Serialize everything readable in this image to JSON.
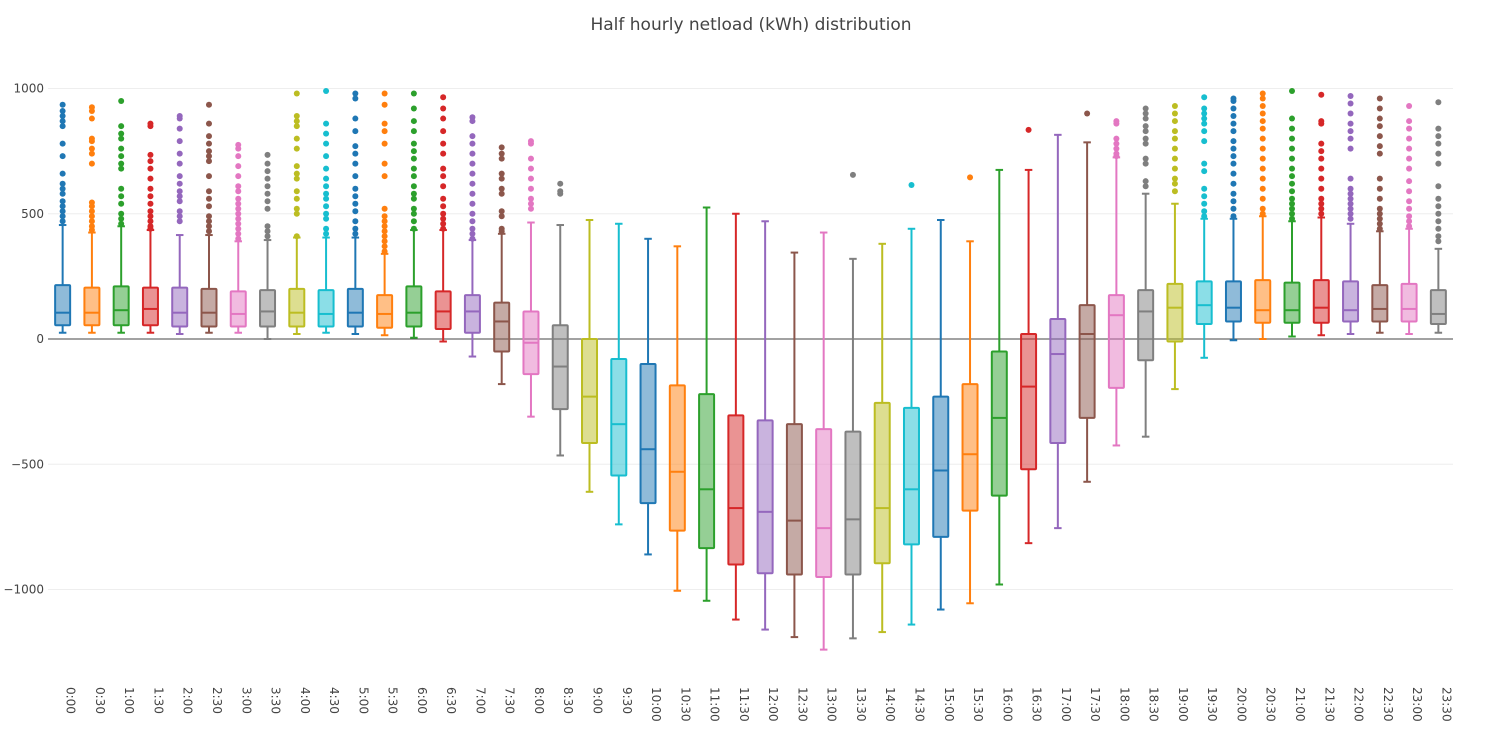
{
  "chart_data": {
    "type": "box",
    "title": "Half hourly netload (kWh) distribution",
    "xlabel": "",
    "ylabel": "",
    "ylim": [
      -1380,
      1130
    ],
    "yticks": [
      1000,
      500,
      0,
      -500,
      -1000
    ],
    "ytick_labels": [
      "1000",
      "500",
      "0",
      "−500",
      "−1000"
    ],
    "categories": [
      "0:00",
      "0:30",
      "1:00",
      "1:30",
      "2:00",
      "2:30",
      "3:00",
      "3:30",
      "4:00",
      "4:30",
      "5:00",
      "5:30",
      "6:00",
      "6:30",
      "7:00",
      "7:30",
      "8:00",
      "8:30",
      "9:00",
      "9:30",
      "10:00",
      "10:30",
      "11:00",
      "11:30",
      "12:00",
      "12:30",
      "13:00",
      "13:30",
      "14:00",
      "14:30",
      "15:00",
      "15:30",
      "16:00",
      "16:30",
      "17:00",
      "17:30",
      "18:00",
      "18:30",
      "19:00",
      "19:30",
      "20:00",
      "20:30",
      "21:00",
      "21:30",
      "22:00",
      "22:30",
      "23:00",
      "23:30"
    ],
    "colors": [
      "#1f77b4",
      "#ff7f0e",
      "#2ca02c",
      "#d62728",
      "#9467bd",
      "#8c564b",
      "#e377c2",
      "#7f7f7f",
      "#bcbd22",
      "#17becf"
    ],
    "series": [
      {
        "name": "0:00",
        "min": 25,
        "q1": 55,
        "median": 105,
        "q3": 215,
        "max": 455,
        "outliers": [
          470,
          490,
          510,
          530,
          550,
          580,
          600,
          620,
          660,
          730,
          780,
          850,
          870,
          890,
          910,
          935
        ]
      },
      {
        "name": "0:30",
        "min": 25,
        "q1": 55,
        "median": 105,
        "q3": 205,
        "max": 425,
        "outliers": [
          435,
          450,
          470,
          490,
          510,
          530,
          545,
          700,
          740,
          760,
          790,
          800,
          880,
          910,
          925
        ]
      },
      {
        "name": "1:00",
        "min": 25,
        "q1": 55,
        "median": 115,
        "q3": 210,
        "max": 450,
        "outliers": [
          460,
          480,
          500,
          540,
          570,
          600,
          680,
          700,
          730,
          760,
          800,
          820,
          850,
          950
        ]
      },
      {
        "name": "1:30",
        "min": 25,
        "q1": 55,
        "median": 120,
        "q3": 205,
        "max": 435,
        "outliers": [
          440,
          450,
          470,
          490,
          510,
          540,
          570,
          600,
          640,
          680,
          710,
          735,
          850,
          860
        ]
      },
      {
        "name": "2:00",
        "min": 20,
        "q1": 50,
        "median": 105,
        "q3": 205,
        "max": 415,
        "outliers": [
          470,
          490,
          510,
          550,
          570,
          590,
          620,
          650,
          700,
          740,
          790,
          840,
          880,
          890
        ]
      },
      {
        "name": "2:30",
        "min": 25,
        "q1": 50,
        "median": 105,
        "q3": 200,
        "max": 415,
        "outliers": [
          430,
          450,
          470,
          490,
          530,
          560,
          590,
          650,
          710,
          730,
          750,
          780,
          810,
          860,
          935
        ]
      },
      {
        "name": "3:00",
        "min": 25,
        "q1": 50,
        "median": 100,
        "q3": 190,
        "max": 390,
        "outliers": [
          400,
          420,
          440,
          460,
          480,
          500,
          520,
          540,
          560,
          590,
          610,
          650,
          690,
          730,
          760,
          775
        ]
      },
      {
        "name": "3:30",
        "min": 0,
        "q1": 50,
        "median": 110,
        "q3": 195,
        "max": 395,
        "outliers": [
          410,
          430,
          450,
          520,
          550,
          580,
          610,
          640,
          670,
          700,
          735
        ]
      },
      {
        "name": "4:00",
        "min": 20,
        "q1": 50,
        "median": 105,
        "q3": 200,
        "max": 405,
        "outliers": [
          410,
          500,
          520,
          560,
          590,
          640,
          660,
          690,
          760,
          800,
          850,
          870,
          890,
          980
        ]
      },
      {
        "name": "4:30",
        "min": 25,
        "q1": 50,
        "median": 100,
        "q3": 195,
        "max": 405,
        "outliers": [
          420,
          440,
          480,
          500,
          530,
          560,
          580,
          610,
          640,
          680,
          730,
          780,
          820,
          860,
          990
        ]
      },
      {
        "name": "5:00",
        "min": 20,
        "q1": 50,
        "median": 105,
        "q3": 200,
        "max": 405,
        "outliers": [
          420,
          440,
          470,
          510,
          540,
          570,
          600,
          650,
          700,
          740,
          770,
          830,
          880,
          960,
          980
        ]
      },
      {
        "name": "5:30",
        "min": 15,
        "q1": 45,
        "median": 100,
        "q3": 175,
        "max": 340,
        "outliers": [
          350,
          370,
          390,
          410,
          430,
          450,
          470,
          490,
          520,
          650,
          700,
          780,
          830,
          860,
          935,
          980
        ]
      },
      {
        "name": "6:00",
        "min": 5,
        "q1": 50,
        "median": 105,
        "q3": 210,
        "max": 435,
        "outliers": [
          440,
          470,
          500,
          520,
          560,
          580,
          610,
          650,
          680,
          720,
          750,
          780,
          830,
          870,
          920,
          980
        ]
      },
      {
        "name": "6:30",
        "min": -10,
        "q1": 40,
        "median": 110,
        "q3": 190,
        "max": 435,
        "outliers": [
          440,
          460,
          480,
          500,
          530,
          560,
          610,
          650,
          680,
          740,
          780,
          830,
          880,
          920,
          965
        ]
      },
      {
        "name": "7:00",
        "min": -70,
        "q1": 25,
        "median": 110,
        "q3": 175,
        "max": 395,
        "outliers": [
          400,
          420,
          440,
          470,
          500,
          540,
          580,
          620,
          660,
          700,
          740,
          780,
          810,
          870,
          885
        ]
      },
      {
        "name": "7:30",
        "min": -180,
        "q1": -50,
        "median": 70,
        "q3": 145,
        "max": 420,
        "outliers": [
          430,
          440,
          490,
          510,
          580,
          600,
          640,
          660,
          720,
          740,
          765
        ]
      },
      {
        "name": "8:00",
        "min": -310,
        "q1": -140,
        "median": -15,
        "q3": 110,
        "max": 465,
        "outliers": [
          520,
          540,
          560,
          600,
          640,
          680,
          720,
          780,
          790
        ]
      },
      {
        "name": "8:30",
        "min": -465,
        "q1": -280,
        "median": -110,
        "q3": 55,
        "max": 455,
        "outliers": [
          580,
          590,
          620
        ]
      },
      {
        "name": "9:00",
        "min": -610,
        "q1": -415,
        "median": -230,
        "q3": 0,
        "max": 475,
        "outliers": []
      },
      {
        "name": "9:30",
        "min": -740,
        "q1": -545,
        "median": -340,
        "q3": -80,
        "max": 460,
        "outliers": []
      },
      {
        "name": "10:00",
        "min": -860,
        "q1": -655,
        "median": -440,
        "q3": -100,
        "max": 400,
        "outliers": []
      },
      {
        "name": "10:30",
        "min": -1005,
        "q1": -765,
        "median": -530,
        "q3": -185,
        "max": 370,
        "outliers": []
      },
      {
        "name": "11:00",
        "min": -1045,
        "q1": -835,
        "median": -600,
        "q3": -220,
        "max": 525,
        "outliers": []
      },
      {
        "name": "11:30",
        "min": -1120,
        "q1": -900,
        "median": -675,
        "q3": -305,
        "max": 500,
        "outliers": []
      },
      {
        "name": "12:00",
        "min": -1160,
        "q1": -935,
        "median": -690,
        "q3": -325,
        "max": 470,
        "outliers": []
      },
      {
        "name": "12:30",
        "min": -1190,
        "q1": -940,
        "median": -725,
        "q3": -340,
        "max": 345,
        "outliers": []
      },
      {
        "name": "13:00",
        "min": -1240,
        "q1": -950,
        "median": -755,
        "q3": -360,
        "max": 425,
        "outliers": []
      },
      {
        "name": "13:30",
        "min": -1195,
        "q1": -940,
        "median": -720,
        "q3": -370,
        "max": 320,
        "outliers": [
          655
        ]
      },
      {
        "name": "14:00",
        "min": -1170,
        "q1": -895,
        "median": -675,
        "q3": -255,
        "max": 380,
        "outliers": []
      },
      {
        "name": "14:30",
        "min": -1140,
        "q1": -820,
        "median": -600,
        "q3": -275,
        "max": 440,
        "outliers": [
          615
        ]
      },
      {
        "name": "15:00",
        "min": -1080,
        "q1": -790,
        "median": -525,
        "q3": -230,
        "max": 475,
        "outliers": []
      },
      {
        "name": "15:30",
        "min": -1055,
        "q1": -685,
        "median": -460,
        "q3": -180,
        "max": 390,
        "outliers": [
          645
        ]
      },
      {
        "name": "16:00",
        "min": -980,
        "q1": -625,
        "median": -315,
        "q3": -50,
        "max": 675,
        "outliers": []
      },
      {
        "name": "16:30",
        "min": -815,
        "q1": -520,
        "median": -190,
        "q3": 20,
        "max": 675,
        "outliers": [
          835
        ]
      },
      {
        "name": "17:00",
        "min": -755,
        "q1": -415,
        "median": -60,
        "q3": 80,
        "max": 815,
        "outliers": []
      },
      {
        "name": "17:30",
        "min": -570,
        "q1": -315,
        "median": 20,
        "q3": 135,
        "max": 785,
        "outliers": [
          900
        ]
      },
      {
        "name": "18:00",
        "min": -425,
        "q1": -195,
        "median": 95,
        "q3": 175,
        "max": 725,
        "outliers": [
          730,
          740,
          760,
          780,
          800,
          860,
          870
        ]
      },
      {
        "name": "18:30",
        "min": -390,
        "q1": -85,
        "median": 110,
        "q3": 195,
        "max": 580,
        "outliers": [
          610,
          630,
          700,
          720,
          780,
          800,
          830,
          850,
          880,
          900,
          920
        ]
      },
      {
        "name": "19:00",
        "min": -200,
        "q1": -10,
        "median": 125,
        "q3": 220,
        "max": 540,
        "outliers": [
          590,
          620,
          640,
          680,
          720,
          760,
          800,
          830,
          870,
          900,
          930
        ]
      },
      {
        "name": "19:30",
        "min": -75,
        "q1": 60,
        "median": 135,
        "q3": 230,
        "max": 480,
        "outliers": [
          490,
          510,
          540,
          570,
          600,
          670,
          700,
          790,
          830,
          860,
          880,
          900,
          920,
          965
        ]
      },
      {
        "name": "20:00",
        "min": -5,
        "q1": 70,
        "median": 125,
        "q3": 230,
        "max": 480,
        "outliers": [
          490,
          520,
          550,
          580,
          620,
          660,
          700,
          730,
          760,
          790,
          830,
          860,
          890,
          920,
          950,
          960
        ]
      },
      {
        "name": "20:30",
        "min": 0,
        "q1": 65,
        "median": 115,
        "q3": 235,
        "max": 490,
        "outliers": [
          500,
          520,
          560,
          600,
          640,
          680,
          720,
          760,
          800,
          840,
          870,
          900,
          930,
          960,
          980
        ]
      },
      {
        "name": "21:00",
        "min": 10,
        "q1": 65,
        "median": 115,
        "q3": 225,
        "max": 470,
        "outliers": [
          480,
          500,
          520,
          540,
          560,
          590,
          620,
          650,
          680,
          720,
          760,
          800,
          840,
          880,
          990
        ]
      },
      {
        "name": "21:30",
        "min": 15,
        "q1": 65,
        "median": 125,
        "q3": 235,
        "max": 485,
        "outliers": [
          500,
          520,
          540,
          560,
          600,
          640,
          680,
          720,
          750,
          780,
          860,
          870,
          975
        ]
      },
      {
        "name": "22:00",
        "min": 20,
        "q1": 70,
        "median": 115,
        "q3": 230,
        "max": 460,
        "outliers": [
          480,
          500,
          520,
          540,
          560,
          580,
          600,
          640,
          760,
          800,
          830,
          860,
          900,
          940,
          970
        ]
      },
      {
        "name": "22:30",
        "min": 25,
        "q1": 70,
        "median": 120,
        "q3": 215,
        "max": 430,
        "outliers": [
          440,
          460,
          480,
          500,
          520,
          560,
          600,
          640,
          740,
          770,
          810,
          850,
          880,
          920,
          960
        ]
      },
      {
        "name": "23:00",
        "min": 20,
        "q1": 70,
        "median": 120,
        "q3": 220,
        "max": 440,
        "outliers": [
          450,
          470,
          490,
          520,
          550,
          590,
          630,
          680,
          720,
          760,
          800,
          840,
          870,
          930
        ]
      },
      {
        "name": "23:30",
        "min": 25,
        "q1": 60,
        "median": 100,
        "q3": 195,
        "max": 360,
        "outliers": [
          390,
          410,
          440,
          470,
          500,
          530,
          560,
          610,
          700,
          740,
          780,
          810,
          840,
          945
        ]
      }
    ]
  }
}
